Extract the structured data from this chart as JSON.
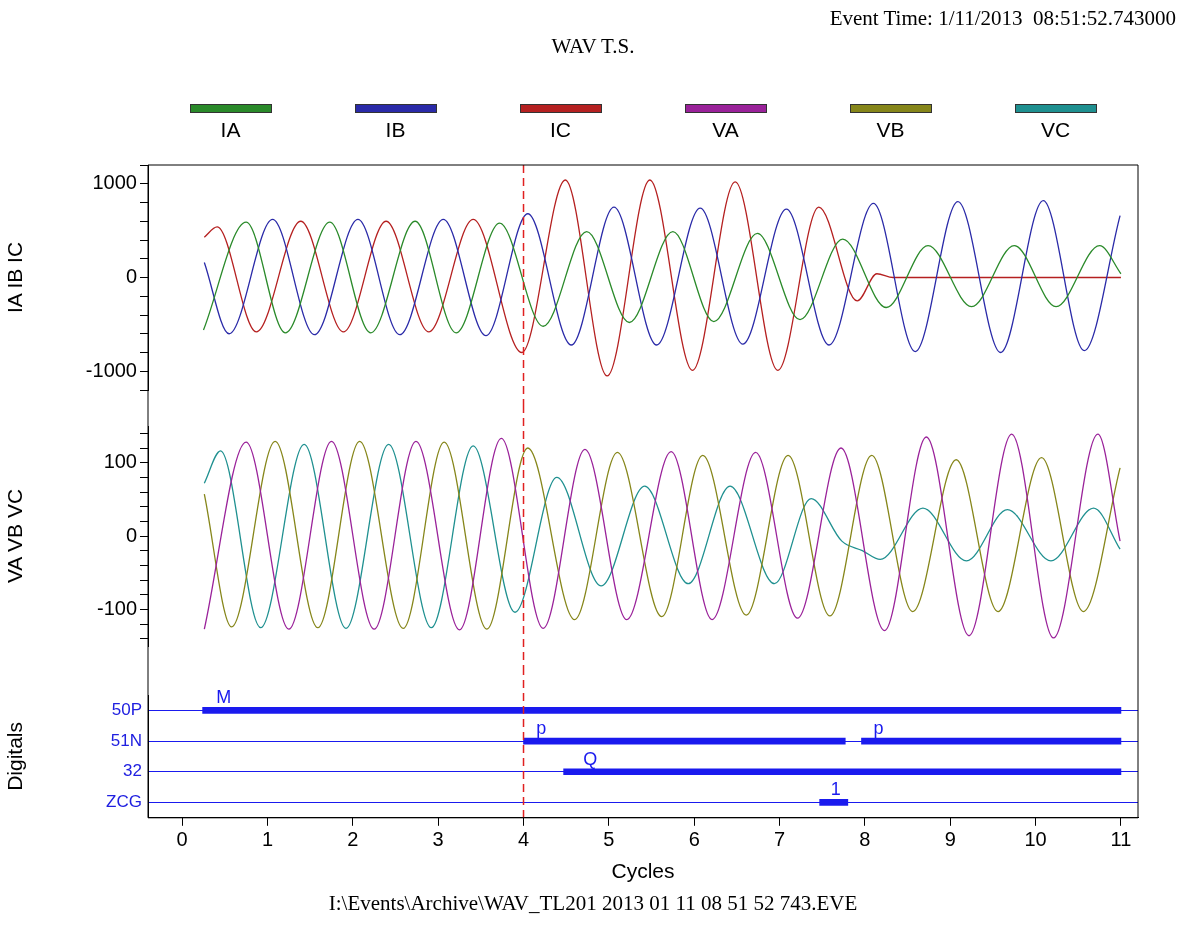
{
  "chart_data": [
    {
      "type": "line",
      "title": "WAV T.S.",
      "ylabel": "IA IB IC",
      "annotations": [
        "Event Time: 1/11/2013  08:51:52.743000"
      ],
      "legend": "top",
      "tick_labels": "y",
      "xlim": [
        -0.4,
        11.2
      ],
      "ylim": [
        -1200,
        1200
      ],
      "yticks": [
        {
          "value": -1200,
          "label": null
        },
        -1000,
        {
          "value": -800,
          "label": null
        },
        {
          "value": -600,
          "label": null
        },
        {
          "value": -400,
          "label": null
        },
        {
          "value": -200,
          "label": null
        },
        0,
        {
          "value": 200,
          "label": null
        },
        {
          "value": 400,
          "label": null
        },
        {
          "value": 600,
          "label": null
        },
        {
          "value": 800,
          "label": null
        },
        1000,
        {
          "value": 1200,
          "label": null
        }
      ],
      "ref_lines": [
        {
          "axis": "x",
          "value": 4,
          "color": "#e02020",
          "line_style": "dashed"
        }
      ],
      "series": [
        {
          "name": "IA",
          "color": "#2a8a2a",
          "x": [
            0.25,
            0.75,
            1.21,
            1.73,
            2.21,
            2.73,
            3.21,
            3.72,
            4.23,
            4.74,
            5.24,
            5.75,
            6.23,
            6.74,
            7.24,
            7.74,
            8.25,
            8.74,
            9.25,
            9.75,
            10.24,
            10.75,
            11.0
          ],
          "values": [
            -560,
            590,
            -590,
            590,
            -590,
            600,
            -590,
            580,
            -520,
            490,
            -480,
            490,
            -470,
            470,
            -450,
            410,
            -320,
            340,
            -310,
            340,
            -310,
            340,
            40
          ]
        },
        {
          "name": "IB",
          "color": "#2a2aa8",
          "x": [
            0.26,
            0.55,
            1.06,
            1.55,
            2.06,
            2.55,
            3.06,
            3.56,
            4.05,
            4.56,
            5.06,
            5.56,
            6.07,
            6.57,
            7.08,
            7.58,
            8.1,
            8.59,
            9.09,
            9.59,
            10.09,
            10.57,
            10.99
          ],
          "values": [
            160,
            -600,
            620,
            -610,
            620,
            -610,
            620,
            -620,
            680,
            -720,
            750,
            -720,
            740,
            -710,
            730,
            -720,
            790,
            -790,
            810,
            -800,
            820,
            -780,
            660
          ]
        },
        {
          "name": "IC",
          "color": "#b52020",
          "x": [
            0.26,
            0.41,
            0.87,
            1.39,
            1.89,
            2.39,
            2.89,
            3.41,
            3.98,
            4.49,
            4.98,
            5.48,
            5.98,
            6.48,
            6.98,
            7.46,
            7.91,
            8.14,
            8.33,
            11.0
          ],
          "values": [
            430,
            540,
            -580,
            600,
            -580,
            600,
            -580,
            620,
            -800,
            1040,
            -1050,
            1040,
            -990,
            1020,
            -990,
            750,
            -250,
            40,
            0,
            0
          ]
        }
      ]
    },
    {
      "type": "line",
      "ylabel": "VA VB VC",
      "legend": "top",
      "tick_labels": "y",
      "xlim": [
        -0.4,
        11.2
      ],
      "ylim": [
        -150,
        150
      ],
      "yticks": [
        {
          "value": -140,
          "label": null
        },
        {
          "value": -120,
          "label": null
        },
        -100,
        {
          "value": -80,
          "label": null
        },
        {
          "value": -60,
          "label": null
        },
        {
          "value": -40,
          "label": null
        },
        {
          "value": -20,
          "label": null
        },
        0,
        {
          "value": 20,
          "label": null
        },
        {
          "value": 40,
          "label": null
        },
        {
          "value": 60,
          "label": null
        },
        {
          "value": 80,
          "label": null
        },
        100,
        {
          "value": 120,
          "label": null
        },
        {
          "value": 140,
          "label": null
        }
      ],
      "ref_lines": [
        {
          "axis": "x",
          "value": 4,
          "color": "#e02020",
          "line_style": "dashed"
        }
      ],
      "series": [
        {
          "name": "VA",
          "color": "#9a229a",
          "x": [
            0.26,
            0.75,
            1.25,
            1.75,
            2.25,
            2.74,
            3.25,
            3.74,
            4.23,
            4.72,
            5.21,
            5.73,
            6.21,
            6.72,
            7.21,
            7.72,
            8.23,
            8.72,
            9.22,
            9.72,
            10.21,
            10.73,
            10.99
          ],
          "values": [
            -127,
            128,
            -127,
            129,
            -127,
            129,
            -128,
            133,
            -126,
            118,
            -114,
            115,
            -114,
            114,
            -112,
            120,
            -129,
            135,
            -136,
            139,
            -139,
            139,
            -7
          ]
        },
        {
          "name": "VB",
          "color": "#86861a",
          "x": [
            0.26,
            0.58,
            1.09,
            1.59,
            2.08,
            2.59,
            3.07,
            3.57,
            4.05,
            4.6,
            5.1,
            5.62,
            6.1,
            6.61,
            7.1,
            7.59,
            8.08,
            8.56,
            9.07,
            9.56,
            10.07,
            10.56,
            10.99
          ],
          "values": [
            57,
            -124,
            129,
            -125,
            129,
            -126,
            128,
            -127,
            120,
            -114,
            114,
            -110,
            110,
            -108,
            110,
            -109,
            110,
            -103,
            104,
            -103,
            107,
            -103,
            93
          ]
        },
        {
          "name": "VC",
          "color": "#1f9090",
          "x": [
            0.26,
            0.45,
            0.92,
            1.43,
            1.92,
            2.42,
            2.92,
            3.41,
            3.9,
            4.39,
            4.91,
            5.42,
            5.93,
            6.42,
            6.94,
            7.37,
            7.73,
            7.97,
            8.18,
            8.68,
            9.19,
            9.67,
            10.18,
            10.68,
            10.99
          ],
          "values": [
            72,
            116,
            -125,
            125,
            -126,
            125,
            -125,
            123,
            -104,
            80,
            -68,
            68,
            -65,
            68,
            -65,
            51,
            -7,
            -20,
            -32,
            38,
            -34,
            36,
            -34,
            38,
            -18
          ]
        }
      ]
    },
    {
      "type": "bar",
      "orientation": "horizontal",
      "ylabel": "Digitals",
      "xlabel": "Cycles",
      "grid": "y",
      "xlim": [
        -0.4,
        11.2
      ],
      "xticks": [
        0,
        1,
        2,
        3,
        4,
        5,
        6,
        7,
        8,
        9,
        10,
        11
      ],
      "categories": [
        "50P",
        "51N",
        "32",
        "ZCG"
      ],
      "ref_lines": [
        {
          "axis": "x",
          "value": 4,
          "color": "#e02020",
          "line_style": "dashed"
        }
      ],
      "annotations": [
        {
          "text": "M",
          "x": 0.4,
          "y": "50P"
        },
        {
          "text": "p",
          "x": 4.15,
          "y": "51N"
        },
        {
          "text": "p",
          "x": 8.1,
          "y": "51N"
        },
        {
          "text": "Q",
          "x": 4.7,
          "y": "32"
        },
        {
          "text": "1",
          "x": 7.6,
          "y": "ZCG"
        },
        "I:\\Events\\Archive\\WAV_TL201 2013 01 11 08 51 52 743.EVE"
      ],
      "series": [
        {
          "color": "#1a1aee",
          "base": [
            0.24,
            4.0,
            4.47,
            7.47
          ],
          "values": [
            10.76,
            3.77,
            6.53,
            0.33
          ]
        },
        {
          "color": "#1a1aee",
          "base": [
            null,
            7.96,
            null,
            null
          ],
          "values": [
            null,
            3.04,
            null,
            null
          ]
        }
      ]
    }
  ]
}
